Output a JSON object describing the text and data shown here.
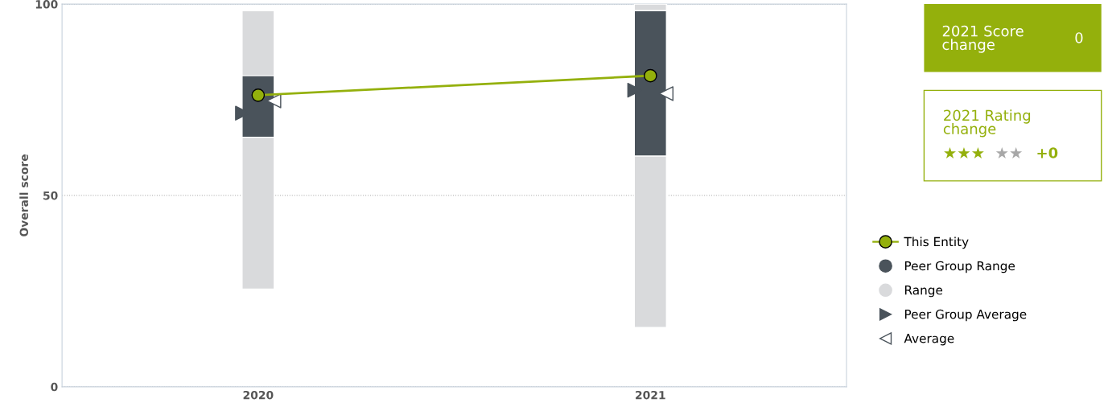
{
  "chart_data": [
    {
      "type": "bar",
      "ylabel": "Overall score",
      "categories": [
        "2020",
        "2021"
      ],
      "ylim": [
        0,
        100
      ],
      "yticks": [
        0,
        50,
        100
      ],
      "grid": "y",
      "legend": "right",
      "series": [
        {
          "name": "This Entity",
          "type": "line",
          "color": "#94b00c",
          "marker": "circle",
          "values": [
            76.2,
            81.3
          ]
        },
        {
          "name": "Peer Group Range",
          "type": "bar",
          "color": "#4a535b",
          "base": [
            65.2,
            60.3
          ],
          "values": [
            16.1,
            38
          ]
        },
        {
          "name": "Range",
          "type": "bar",
          "color": "#d9dadc",
          "base": [
            25.5,
            15.5
          ],
          "values": [
            72.8,
            84.5
          ]
        },
        {
          "name": "Peer Group Average",
          "type": "scatter",
          "color": "#4a535b",
          "marker": "triangle_right",
          "values": [
            71.5,
            77.5
          ]
        },
        {
          "name": "Average",
          "type": "scatter",
          "color": "#ffffff",
          "marker": "triangle_left",
          "values": [
            74.7,
            76.6
          ]
        }
      ]
    },
    {
      "type": "other",
      "annotations": [
        "2021 Score change",
        "0",
        "2021 Rating change",
        "★★★",
        "★★",
        "+0"
      ]
    }
  ]
}
